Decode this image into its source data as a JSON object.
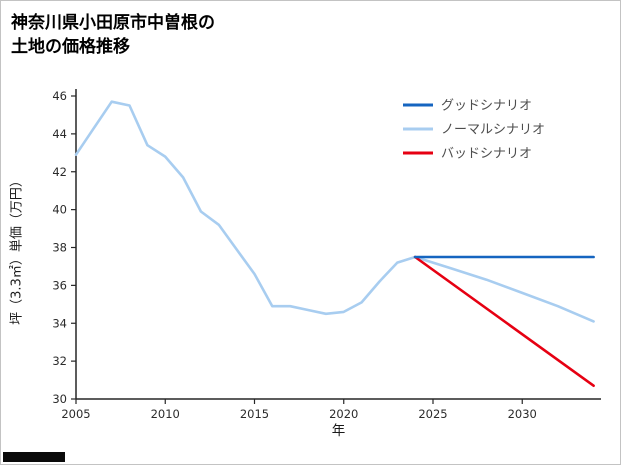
{
  "title": {
    "line1": "神奈川県小田原市中曽根の",
    "line2": "土地の価格推移"
  },
  "chart_data": {
    "type": "line",
    "title": "神奈川県小田原市中曽根の土地の価格推移",
    "xlabel": "年",
    "ylabel": "坪（3.3㎡）単価（万円）",
    "xlim": [
      2005,
      2034.3
    ],
    "ylim": [
      30,
      46
    ],
    "x_ticks": [
      2005,
      2010,
      2015,
      2020,
      2025,
      2030
    ],
    "y_ticks": [
      30,
      32,
      34,
      36,
      38,
      40,
      42,
      44,
      46
    ],
    "grid": false,
    "legend_position": "top-right-inside",
    "axis_color": "#262626",
    "series": [
      {
        "name": "グッドシナリオ",
        "color": "#1565c0",
        "x": [
          2024,
          2026,
          2028,
          2030,
          2032,
          2034
        ],
        "y": [
          37.5,
          37.5,
          37.5,
          37.5,
          37.5,
          37.5
        ]
      },
      {
        "name": "ノーマルシナリオ",
        "color": "#a8cdf0",
        "x": [
          2005,
          2006,
          2007,
          2008,
          2009,
          2010,
          2011,
          2012,
          2013,
          2014,
          2015,
          2016,
          2017,
          2018,
          2019,
          2020,
          2021,
          2022,
          2023,
          2024,
          2026,
          2028,
          2030,
          2032,
          2034
        ],
        "y": [
          42.9,
          44.3,
          45.7,
          45.5,
          43.4,
          42.8,
          41.7,
          39.9,
          39.2,
          37.9,
          36.6,
          34.9,
          34.9,
          34.7,
          34.5,
          34.6,
          35.1,
          36.2,
          37.2,
          37.5,
          36.9,
          36.3,
          35.6,
          34.9,
          34.1
        ]
      },
      {
        "name": "バッドシナリオ",
        "color": "#e60012",
        "x": [
          2024,
          2034
        ],
        "y": [
          37.5,
          30.7
        ]
      }
    ]
  }
}
